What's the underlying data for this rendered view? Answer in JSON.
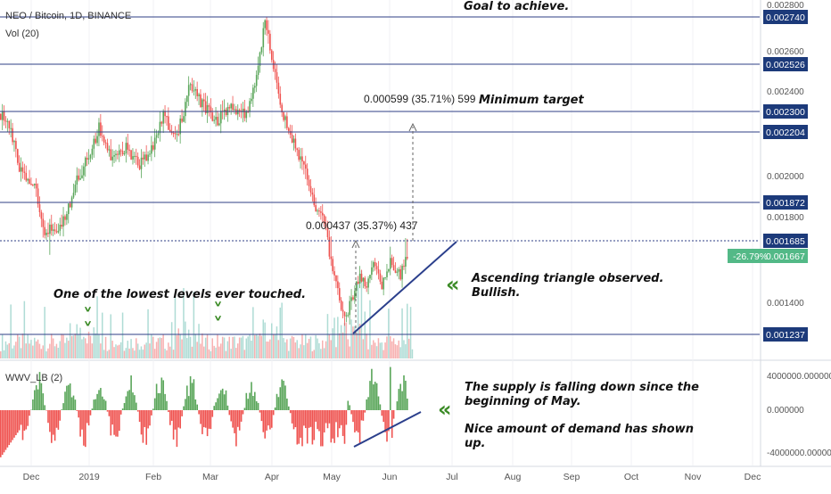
{
  "header": {
    "symbol": "NEO / Bitcoin, 1D, BINANCE",
    "volume_label": "Vol (20)",
    "indicator_label": "WWV_LB (2)"
  },
  "colors": {
    "up": "#5aa65a",
    "down": "#ef5350",
    "level_line": "#2f3f86",
    "label_bg": "#1c3a7a",
    "current_bg": "#53b987",
    "trend_line": "#2b3f8c",
    "chevron": "#3a8a25"
  },
  "annotations": {
    "goal": "Goal to achieve.",
    "min_target": "Minimum target",
    "lowest_levels": "One of the lowest levels ever touched.",
    "triangle_1": "Ascending triangle observed.",
    "triangle_2": "Bullish.",
    "supply_1": "The supply is falling down since the",
    "supply_2": "beginning of May.",
    "demand_1": "Nice amount of demand has shown",
    "demand_2": "up.",
    "measure_top": "0.000599 (35.71%) 599",
    "measure_bottom": "0.000437 (35.37%) 437"
  },
  "chart_data": {
    "type": "candlestick",
    "title": "NEO / Bitcoin, 1D, BINANCE",
    "x_ticks": [
      "Dec",
      "2019",
      "Feb",
      "Mar",
      "Apr",
      "May",
      "Jun",
      "Jul",
      "Aug",
      "Sep",
      "Oct",
      "Nov",
      "Dec"
    ],
    "y_ticks": [
      "0.002800",
      "0.002600",
      "0.002400",
      "0.002000",
      "0.001800",
      "0.001400"
    ],
    "price_range": [
      0.00118,
      0.00282
    ],
    "levels": [
      "0.002740",
      "0.002526",
      "0.002300",
      "0.002204",
      "0.001872",
      "0.001685",
      "0.001237"
    ],
    "current_price": "0.001667",
    "current_change": "-26.79%",
    "volume": {
      "label": "Vol (20)"
    },
    "indicator": {
      "label": "WWV_LB (2)",
      "y_ticks": [
        "4000000.000000",
        "0.000000",
        "-4000000.000000"
      ],
      "range": [
        -5200000,
        5200000
      ]
    },
    "price_path": [
      {
        "day": 0,
        "price": 0.00229
      },
      {
        "day": 6,
        "price": 0.0022
      },
      {
        "day": 12,
        "price": 0.00201
      },
      {
        "day": 20,
        "price": 0.00197
      },
      {
        "day": 25,
        "price": 0.00172
      },
      {
        "day": 32,
        "price": 0.00174
      },
      {
        "day": 38,
        "price": 0.00178
      },
      {
        "day": 44,
        "price": 0.00197
      },
      {
        "day": 52,
        "price": 0.00208
      },
      {
        "day": 58,
        "price": 0.00222
      },
      {
        "day": 66,
        "price": 0.00208
      },
      {
        "day": 74,
        "price": 0.00213
      },
      {
        "day": 82,
        "price": 0.00205
      },
      {
        "day": 90,
        "price": 0.00214
      },
      {
        "day": 96,
        "price": 0.00228
      },
      {
        "day": 104,
        "price": 0.00218
      },
      {
        "day": 112,
        "price": 0.00243
      },
      {
        "day": 120,
        "price": 0.00232
      },
      {
        "day": 128,
        "price": 0.00226
      },
      {
        "day": 136,
        "price": 0.00233
      },
      {
        "day": 144,
        "price": 0.00228
      },
      {
        "day": 150,
        "price": 0.00242
      },
      {
        "day": 156,
        "price": 0.00272
      },
      {
        "day": 160,
        "price": 0.00256
      },
      {
        "day": 166,
        "price": 0.0023
      },
      {
        "day": 172,
        "price": 0.00218
      },
      {
        "day": 180,
        "price": 0.002
      },
      {
        "day": 186,
        "price": 0.00185
      },
      {
        "day": 192,
        "price": 0.00176
      },
      {
        "day": 198,
        "price": 0.0015
      },
      {
        "day": 203,
        "price": 0.0013
      },
      {
        "day": 207,
        "price": 0.0014
      },
      {
        "day": 212,
        "price": 0.00156
      },
      {
        "day": 216,
        "price": 0.00148
      },
      {
        "day": 220,
        "price": 0.00163
      },
      {
        "day": 225,
        "price": 0.0015
      },
      {
        "day": 230,
        "price": 0.00164
      },
      {
        "day": 236,
        "price": 0.00155
      },
      {
        "day": 240,
        "price": 0.00167
      }
    ]
  }
}
